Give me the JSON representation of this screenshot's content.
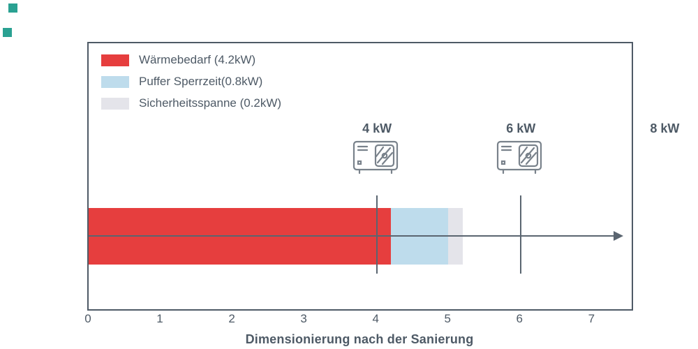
{
  "decor": {
    "marker_color": "#2aa192"
  },
  "chart_data": {
    "type": "bar",
    "orientation": "horizontal",
    "title": "",
    "xlabel": "Dimensionierung nach der Sanierung",
    "xlim": [
      0,
      7.55
    ],
    "x_ticks": [
      "0",
      "1",
      "2",
      "3",
      "4",
      "5",
      "6",
      "7"
    ],
    "grid": false,
    "legend_position": "upper-left",
    "series": [
      {
        "name": "Wärmebedarf (4.2kW)",
        "value": 4.2,
        "color": "#e63e3e"
      },
      {
        "name": "Puffer Sperrzeit(0.8kW)",
        "value": 0.8,
        "color": "#bedcec"
      },
      {
        "name": "Sicherheitsspanne (0.2kW)",
        "value": 0.2,
        "color": "#e4e4ea"
      }
    ],
    "bar_total": 5.2,
    "annotations": [
      {
        "label": "4 kW",
        "x": 4,
        "icon": "heat-pump",
        "vline": true
      },
      {
        "label": "6 kW",
        "x": 6,
        "icon": "heat-pump",
        "vline": true
      },
      {
        "label": "8 kW",
        "x": 8,
        "icon": null,
        "vline": false
      }
    ],
    "axis_color": "#4e5a66",
    "text_color": "#4e5a66"
  }
}
